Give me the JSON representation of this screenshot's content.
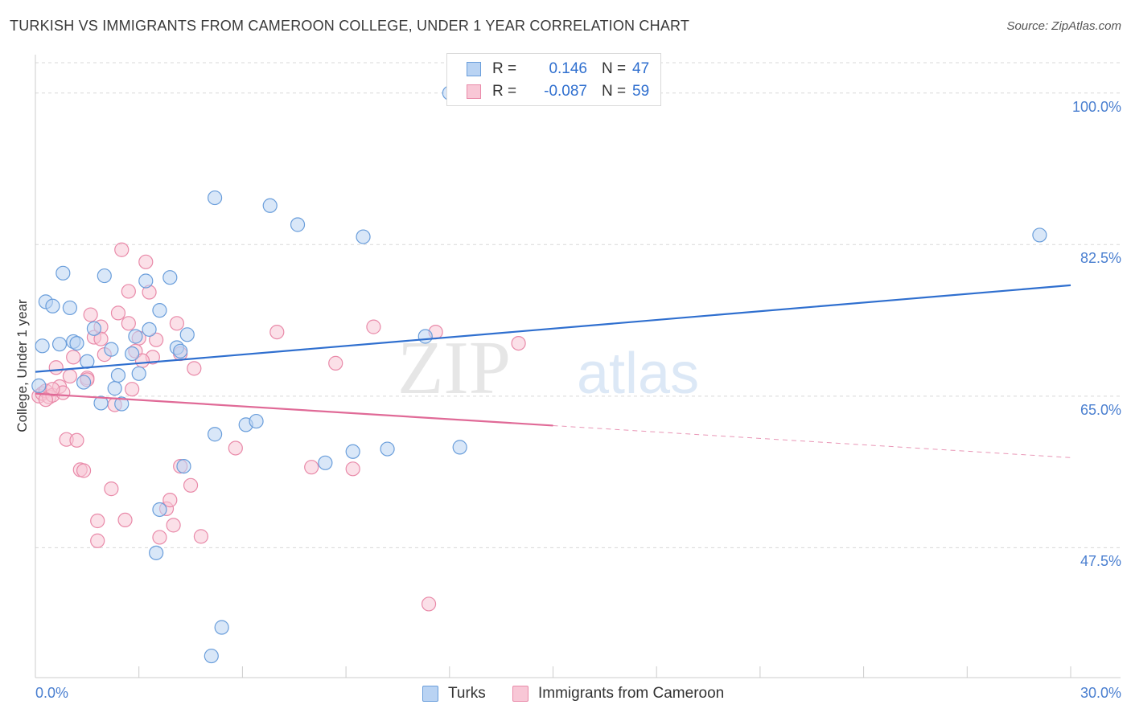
{
  "title": "TURKISH VS IMMIGRANTS FROM CAMEROON COLLEGE, UNDER 1 YEAR CORRELATION CHART",
  "source": "Source: ZipAtlas.com",
  "watermark": {
    "zip": "ZIP",
    "atlas": "atlas"
  },
  "legend_top": {
    "rows": [
      {
        "r_label": "R =",
        "r_value": "0.146",
        "n_label": "N =",
        "n_value": "47"
      },
      {
        "r_label": "R =",
        "r_value": "-0.087",
        "n_label": "N =",
        "n_value": "59"
      }
    ]
  },
  "legend_bottom": {
    "turks": "Turks",
    "cameroon": "Immigrants from Cameroon"
  },
  "colors": {
    "turks_fill": "#b9d3f3",
    "turks_stroke": "#6a9edb",
    "turks_line": "#2f6fcf",
    "cam_fill": "#f8c7d6",
    "cam_stroke": "#e98aa9",
    "cam_line": "#e06a97",
    "tick_text": "#4a7fd0",
    "grid": "#d8d8d8"
  },
  "chart_data": {
    "type": "scatter",
    "title": "TURKISH VS IMMIGRANTS FROM CAMEROON COLLEGE, UNDER 1 YEAR CORRELATION CHART",
    "xlabel": "",
    "ylabel": "College, Under 1 year",
    "xlim": [
      0,
      30
    ],
    "ylim": [
      32.5,
      103.5
    ],
    "x_tick_labels": [
      "0.0%",
      "30.0%"
    ],
    "y_ticks": [
      47.5,
      65.0,
      82.5,
      100.0
    ],
    "y_tick_labels": [
      "47.5%",
      "65.0%",
      "82.5%",
      "100.0%"
    ],
    "grid": true,
    "legend_position": "top-center",
    "series": [
      {
        "name": "Turks",
        "r": 0.146,
        "n": 47,
        "trend": {
          "x": [
            0,
            30
          ],
          "y": [
            67.8,
            77.8
          ],
          "solid_to": 30
        },
        "points": [
          [
            0.1,
            66.2
          ],
          [
            0.2,
            70.8
          ],
          [
            0.3,
            75.9
          ],
          [
            0.5,
            75.4
          ],
          [
            0.7,
            71.0
          ],
          [
            0.8,
            79.2
          ],
          [
            1.0,
            75.2
          ],
          [
            1.1,
            71.3
          ],
          [
            1.2,
            71.1
          ],
          [
            1.4,
            66.6
          ],
          [
            1.5,
            69.0
          ],
          [
            1.7,
            72.8
          ],
          [
            1.9,
            64.2
          ],
          [
            2.0,
            78.9
          ],
          [
            2.2,
            70.4
          ],
          [
            2.3,
            65.9
          ],
          [
            2.4,
            67.4
          ],
          [
            2.5,
            64.1
          ],
          [
            2.8,
            69.9
          ],
          [
            2.9,
            71.9
          ],
          [
            3.0,
            67.6
          ],
          [
            3.2,
            78.3
          ],
          [
            3.3,
            72.7
          ],
          [
            3.6,
            74.9
          ],
          [
            3.9,
            78.7
          ],
          [
            4.1,
            70.6
          ],
          [
            4.2,
            70.2
          ],
          [
            4.4,
            72.1
          ],
          [
            4.3,
            56.9
          ],
          [
            3.6,
            51.9
          ],
          [
            3.5,
            46.9
          ],
          [
            5.2,
            87.9
          ],
          [
            6.8,
            87.0
          ],
          [
            7.6,
            84.8
          ],
          [
            9.5,
            83.4
          ],
          [
            12.0,
            100.0
          ],
          [
            11.3,
            71.9
          ],
          [
            5.2,
            60.6
          ],
          [
            6.1,
            61.7
          ],
          [
            6.4,
            62.1
          ],
          [
            8.4,
            57.3
          ],
          [
            9.2,
            58.6
          ],
          [
            10.2,
            58.9
          ],
          [
            12.3,
            59.1
          ],
          [
            5.4,
            38.3
          ],
          [
            5.1,
            35.0
          ],
          [
            29.1,
            83.6
          ]
        ]
      },
      {
        "name": "Immigrants from Cameroon",
        "r": -0.087,
        "n": 59,
        "trend": {
          "x": [
            0,
            30
          ],
          "y": [
            65.3,
            57.9
          ],
          "solid_to": 15
        },
        "points": [
          [
            0.1,
            65.0
          ],
          [
            0.2,
            65.3
          ],
          [
            0.3,
            65.6
          ],
          [
            0.4,
            64.9
          ],
          [
            0.5,
            65.1
          ],
          [
            0.6,
            68.3
          ],
          [
            0.7,
            66.1
          ],
          [
            0.8,
            65.4
          ],
          [
            0.9,
            60.0
          ],
          [
            1.0,
            67.3
          ],
          [
            1.1,
            69.5
          ],
          [
            1.2,
            59.9
          ],
          [
            1.3,
            56.5
          ],
          [
            1.4,
            56.4
          ],
          [
            1.5,
            67.1
          ],
          [
            1.6,
            74.4
          ],
          [
            1.7,
            71.8
          ],
          [
            1.8,
            48.3
          ],
          [
            1.8,
            50.6
          ],
          [
            1.9,
            73.0
          ],
          [
            1.9,
            71.6
          ],
          [
            2.0,
            69.8
          ],
          [
            2.2,
            54.3
          ],
          [
            2.3,
            64.0
          ],
          [
            2.4,
            74.6
          ],
          [
            2.5,
            81.9
          ],
          [
            2.6,
            50.7
          ],
          [
            2.7,
            73.4
          ],
          [
            2.7,
            77.1
          ],
          [
            2.8,
            65.8
          ],
          [
            3.0,
            71.7
          ],
          [
            3.2,
            80.5
          ],
          [
            3.3,
            77.0
          ],
          [
            3.4,
            69.5
          ],
          [
            3.5,
            71.5
          ],
          [
            3.6,
            48.7
          ],
          [
            3.8,
            52.0
          ],
          [
            3.9,
            53.0
          ],
          [
            4.0,
            50.1
          ],
          [
            4.1,
            73.4
          ],
          [
            4.2,
            56.9
          ],
          [
            4.5,
            54.7
          ],
          [
            4.6,
            68.2
          ],
          [
            4.8,
            48.8
          ],
          [
            5.8,
            59.0
          ],
          [
            7.0,
            72.4
          ],
          [
            8.0,
            56.8
          ],
          [
            8.7,
            68.8
          ],
          [
            9.2,
            56.6
          ],
          [
            9.8,
            73.0
          ],
          [
            11.6,
            72.4
          ],
          [
            14.0,
            71.1
          ],
          [
            11.4,
            41.0
          ],
          [
            4.2,
            69.9
          ],
          [
            0.5,
            65.8
          ],
          [
            1.5,
            66.9
          ],
          [
            2.9,
            70.2
          ],
          [
            0.3,
            64.6
          ],
          [
            3.1,
            69.1
          ]
        ]
      }
    ]
  }
}
